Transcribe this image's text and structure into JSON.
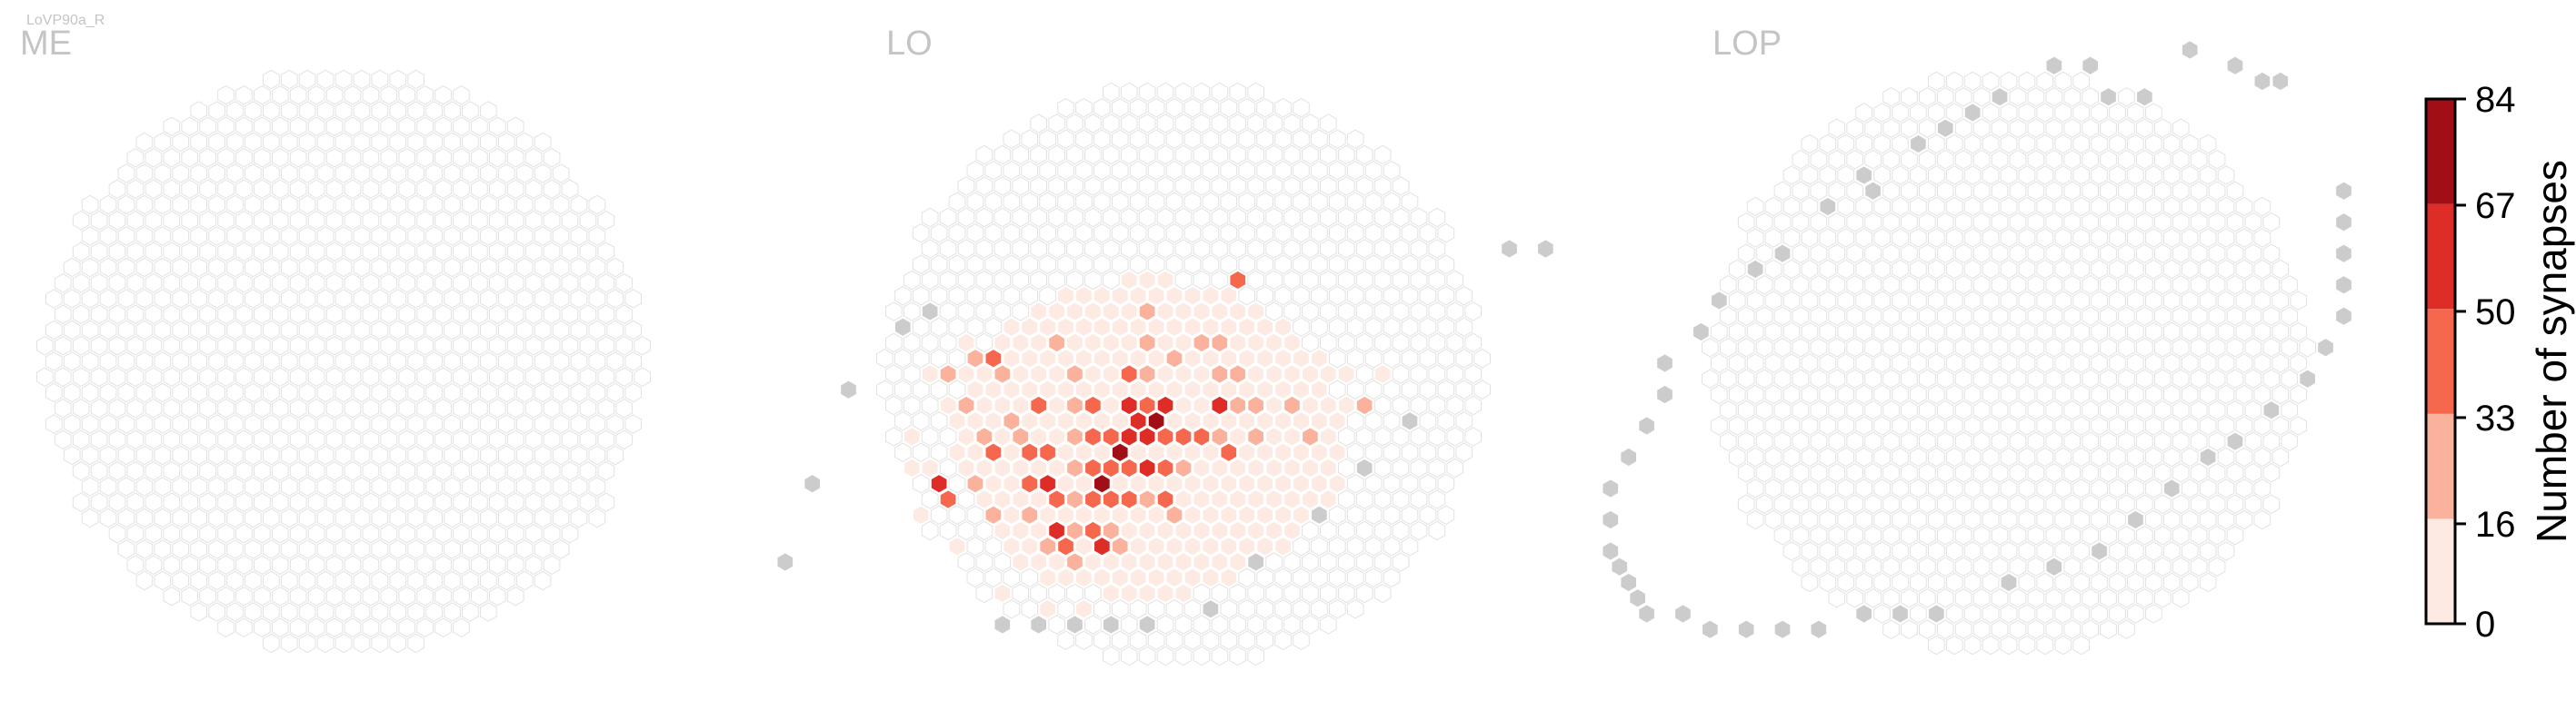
{
  "cell_type": "LoVP90a_R",
  "colors": {
    "empty_cell_stroke": "#e2e2e2",
    "outside_cell_fill": "#cccccc",
    "title": "#c4c4c4",
    "colormap": [
      "#fdeae2",
      "#fbb29d",
      "#f6684e",
      "#de2c26",
      "#a10e16"
    ]
  },
  "chart_data": [
    {
      "type": "heatmap",
      "title": "ME",
      "hex_grid": "ME",
      "outside_cells": [],
      "values": []
    },
    {
      "type": "heatmap",
      "title": "LO",
      "hex_grid": "LO",
      "outside_cells": [
        [
          -17,
          3
        ],
        [
          -16,
          4
        ],
        [
          14,
          8
        ],
        [
          16,
          8
        ],
        [
          -18,
          -1
        ],
        [
          -17,
          -7
        ],
        [
          -16,
          -12
        ],
        [
          14,
          -3
        ],
        [
          13,
          -6
        ],
        [
          12,
          -9
        ],
        [
          10,
          -12
        ],
        [
          9,
          -15
        ],
        [
          -2,
          -16
        ],
        [
          0,
          -16
        ],
        [
          2,
          -16
        ],
        [
          4,
          -16
        ],
        [
          6,
          -16
        ]
      ],
      "values": [
        {
          "ring": [
            -15,
            0,
            0
          ],
          "value": 10
        },
        {
          "cells": [
            [
              -13,
              2
            ],
            [
              -11,
              2
            ],
            [
              -12,
              -2
            ],
            [
              -9,
              2
            ],
            [
              -14,
              0
            ],
            [
              -10,
              -1
            ],
            [
              -7,
              1
            ],
            [
              -8,
              -1
            ],
            [
              -5,
              2
            ],
            [
              -4,
              0
            ],
            [
              -6,
              -3
            ],
            [
              -9,
              -6
            ],
            [
              -7,
              -8
            ],
            [
              -5,
              -10
            ],
            [
              -3,
              -12
            ],
            [
              -1,
              -13
            ],
            [
              1,
              -12
            ],
            [
              3,
              -10
            ],
            [
              5,
              -8
            ],
            [
              -11,
              -6
            ],
            [
              -10,
              -9
            ],
            [
              -7,
              -11
            ],
            [
              -3,
              -14
            ],
            [
              0,
              -15
            ],
            [
              2,
              -15
            ],
            [
              -2,
              3
            ],
            [
              0,
              5
            ],
            [
              2,
              3
            ],
            [
              4,
              1
            ],
            [
              6,
              -1
            ],
            [
              7,
              -4
            ],
            [
              6,
              -6
            ],
            [
              8,
              -2
            ],
            [
              10,
              -2
            ],
            [
              9,
              0
            ],
            [
              11,
              0
            ],
            [
              -13,
              -4
            ],
            [
              -12,
              -6
            ]
          ],
          "value": 6
        },
        {
          "cells": [
            [
              -10,
              0
            ],
            [
              -8,
              2
            ],
            [
              -6,
              0
            ],
            [
              -5,
              -2
            ],
            [
              -4,
              -4
            ],
            [
              -3,
              -6
            ],
            [
              -2,
              -8
            ],
            [
              -1,
              -10
            ],
            [
              0,
              -12
            ],
            [
              1,
              -10
            ],
            [
              2,
              -8
            ],
            [
              3,
              -6
            ],
            [
              4,
              -4
            ],
            [
              5,
              -2
            ],
            [
              3,
              0
            ],
            [
              1,
              2
            ],
            [
              -1,
              1
            ],
            [
              -3,
              2
            ],
            [
              -7,
              -4
            ],
            [
              -8,
              -7
            ],
            [
              -6,
              -9
            ],
            [
              -4,
              -9
            ],
            [
              -2,
              -11
            ],
            [
              2,
              -11
            ],
            [
              4,
              -9
            ],
            [
              -9,
              -4
            ],
            [
              -11,
              -2
            ],
            [
              -12,
              1
            ],
            [
              -4,
              4
            ],
            [
              0,
              2
            ],
            [
              -2,
              0
            ],
            [
              2,
              0
            ],
            [
              4,
              -2
            ],
            [
              6,
              -4
            ],
            [
              7,
              -2
            ],
            [
              9,
              -4
            ],
            [
              11,
              -2
            ],
            [
              -13,
              0
            ],
            [
              -8,
              -3
            ]
          ],
          "value": 22
        },
        {
          "cells": [
            [
              -7,
              -2
            ],
            [
              -6,
              -5
            ],
            [
              -5,
              -7
            ],
            [
              -4,
              -2
            ],
            [
              -3,
              -4
            ],
            [
              -2,
              -6
            ],
            [
              -1,
              -8
            ],
            [
              0,
              -10
            ],
            [
              1,
              -8
            ],
            [
              2,
              -6
            ],
            [
              3,
              -4
            ],
            [
              -1,
              -2
            ],
            [
              1,
              -4
            ],
            [
              -1,
              -6
            ],
            [
              0,
              -6
            ],
            [
              -2,
              -4
            ],
            [
              2,
              -4
            ],
            [
              0,
              -8
            ],
            [
              -3,
              -8
            ],
            [
              3,
              -8
            ],
            [
              -5,
              -5
            ],
            [
              5,
              -5
            ],
            [
              -8,
              -5
            ],
            [
              -9,
              -8
            ],
            [
              0,
              6
            ],
            [
              -3,
              0
            ],
            [
              -11,
              1
            ],
            [
              -1,
              -11
            ]
          ],
          "value": 40
        },
        {
          "cells": [
            [
              -2,
              -2
            ],
            [
              0,
              -2
            ],
            [
              1,
              -6
            ],
            [
              -1,
              -4
            ],
            [
              0,
              -4
            ],
            [
              -2,
              -10
            ],
            [
              -4,
              -7
            ],
            [
              -10,
              -7
            ],
            [
              1,
              -11
            ],
            [
              -1,
              -3
            ],
            [
              3,
              -2
            ]
          ],
          "value": 58
        },
        {
          "cells": [
            [
              0,
              -3
            ],
            [
              -1,
              -5
            ]
          ],
          "value": 70
        },
        {
          "cells": [
            [
              -1,
              -7
            ]
          ],
          "value": 80
        }
      ]
    },
    {
      "type": "heatmap",
      "title": "LOP",
      "hex_grid": "LOP",
      "outside_cells": [
        [
          -12,
          14
        ],
        [
          -11,
          15
        ],
        [
          -10,
          16
        ],
        [
          -9,
          17
        ],
        [
          -14,
          12
        ],
        [
          -13,
          11
        ],
        [
          -15,
          10
        ],
        [
          -16,
          7
        ],
        [
          -17,
          6
        ],
        [
          -18,
          4
        ],
        [
          -18,
          2
        ],
        [
          -19,
          0
        ],
        [
          -18,
          -2
        ],
        [
          -18,
          -4
        ],
        [
          -18,
          -6
        ],
        [
          -18,
          -8
        ],
        [
          -17,
          -10
        ],
        [
          -16,
          -12
        ],
        [
          -15,
          -13
        ],
        [
          -14,
          -14
        ],
        [
          -13,
          -15
        ],
        [
          -12,
          -16
        ],
        [
          -10,
          -16
        ],
        [
          -8,
          -17
        ],
        [
          -6,
          -17
        ],
        [
          -4,
          -17
        ],
        [
          -2,
          -17
        ],
        [
          0,
          -16
        ],
        [
          2,
          -16
        ],
        [
          4,
          -16
        ],
        [
          7,
          -14
        ],
        [
          9,
          -13
        ],
        [
          11,
          -12
        ],
        [
          12,
          -10
        ],
        [
          13,
          -8
        ],
        [
          14,
          -6
        ],
        [
          15,
          -5
        ],
        [
          16,
          -3
        ],
        [
          17,
          -1
        ],
        [
          17,
          1
        ],
        [
          17,
          3
        ],
        [
          16,
          5
        ],
        [
          15,
          7
        ],
        [
          14,
          9
        ],
        [
          13,
          11
        ],
        [
          3,
          19
        ],
        [
          5,
          18
        ],
        [
          6,
          18
        ],
        [
          -7,
          19
        ],
        [
          -5,
          19
        ],
        [
          0,
          20
        ],
        [
          -3,
          17
        ],
        [
          -1,
          17
        ]
      ],
      "values": []
    }
  ],
  "colorbar": {
    "label": "Number of synapses",
    "ticks": [
      "0",
      "16",
      "33",
      "50",
      "67",
      "84"
    ],
    "tick_values": [
      0,
      16,
      33,
      50,
      67,
      84
    ],
    "bounds": [
      0,
      16.8,
      33.6,
      50.4,
      67.2,
      84
    ]
  }
}
